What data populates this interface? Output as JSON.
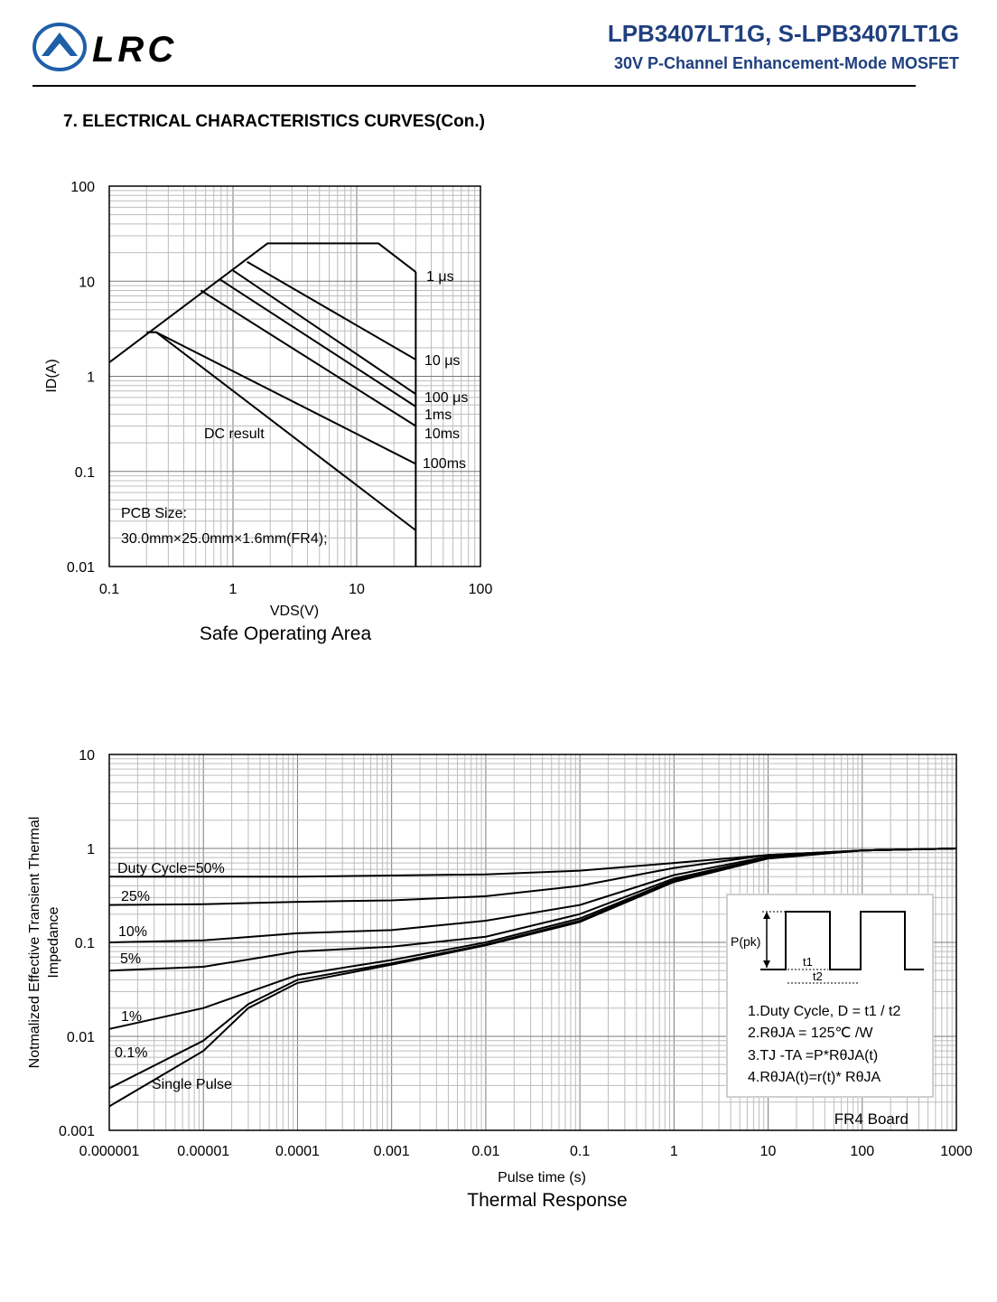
{
  "header": {
    "logo_text": "LRC",
    "part_number": "LPB3407LT1G, S-LPB3407LT1G",
    "description": "30V P-Channel Enhancement-Mode MOSFET"
  },
  "section_title": "7. ELECTRICAL CHARACTERISTICS CURVES(Con.)",
  "chart_data": [
    {
      "type": "line",
      "title": "Safe Operating Area",
      "xlabel": "VDS(V)",
      "ylabel": "ID(A)",
      "xscale": "log",
      "yscale": "log",
      "xlim": [
        0.1,
        100
      ],
      "ylim": [
        0.01,
        100
      ],
      "x_ticks": [
        "0.1",
        "1",
        "10",
        "100"
      ],
      "y_ticks": [
        "100",
        "10",
        "1",
        "0.1",
        "0.01"
      ],
      "grid": true,
      "series": [
        {
          "name": "1 μs",
          "x": [
            0.1,
            1.9,
            15,
            30
          ],
          "y": [
            1.4,
            25,
            25,
            12.5
          ]
        },
        {
          "name": "10 μs",
          "x": [
            1.3,
            30
          ],
          "y": [
            16,
            1.5
          ]
        },
        {
          "name": "100 μs",
          "x": [
            1.0,
            30
          ],
          "y": [
            13,
            0.65
          ]
        },
        {
          "name": "1ms",
          "x": [
            0.78,
            30
          ],
          "y": [
            10.5,
            0.48
          ]
        },
        {
          "name": "10ms",
          "x": [
            0.55,
            30
          ],
          "y": [
            8,
            0.3
          ]
        },
        {
          "name": "100ms",
          "x": [
            0.2,
            0.24,
            30
          ],
          "y": [
            2.9,
            2.9,
            0.12
          ]
        },
        {
          "name": "DC result",
          "x": [
            0.24,
            30
          ],
          "y": [
            2.9,
            0.024
          ]
        }
      ],
      "annotations": [
        "DC result",
        "PCB Size:",
        "30.0mm×25.0mm×1.6mm(FR4);"
      ],
      "limit_vds": 30
    },
    {
      "type": "line",
      "title": "Thermal Response",
      "xlabel": "Pulse time (s)",
      "ylabel": "Notmalized Effective Transient Thermal Impedance",
      "xscale": "log",
      "yscale": "log",
      "xlim": [
        1e-06,
        1000
      ],
      "ylim": [
        0.001,
        10
      ],
      "x_ticks": [
        "0.000001",
        "0.00001",
        "0.0001",
        "0.001",
        "0.01",
        "0.1",
        "1",
        "10",
        "100",
        "1000"
      ],
      "y_ticks": [
        "10",
        "1",
        "0.1",
        "0.01",
        "0.001"
      ],
      "grid": true,
      "series": [
        {
          "name": "Duty Cycle=50%",
          "x": [
            1e-06,
            0.0001,
            0.01,
            0.1,
            1,
            10,
            100,
            1000
          ],
          "y": [
            0.5,
            0.5,
            0.53,
            0.58,
            0.7,
            0.85,
            0.95,
            1.0
          ]
        },
        {
          "name": "25%",
          "x": [
            1e-06,
            1e-05,
            0.0001,
            0.001,
            0.01,
            0.1,
            1,
            10,
            100,
            1000
          ],
          "y": [
            0.25,
            0.255,
            0.27,
            0.28,
            0.31,
            0.4,
            0.62,
            0.85,
            0.95,
            1.0
          ]
        },
        {
          "name": "10%",
          "x": [
            1e-06,
            1e-05,
            0.0001,
            0.001,
            0.01,
            0.1,
            1,
            10,
            100,
            1000
          ],
          "y": [
            0.1,
            0.105,
            0.125,
            0.135,
            0.17,
            0.25,
            0.52,
            0.82,
            0.95,
            1.0
          ]
        },
        {
          "name": "5%",
          "x": [
            1e-06,
            1e-05,
            0.0001,
            0.001,
            0.01,
            0.1,
            1,
            10,
            100,
            1000
          ],
          "y": [
            0.05,
            0.055,
            0.08,
            0.09,
            0.115,
            0.2,
            0.48,
            0.8,
            0.95,
            1.0
          ]
        },
        {
          "name": "1%",
          "x": [
            1e-06,
            1e-05,
            0.0001,
            0.001,
            0.01,
            0.1,
            1,
            10,
            100,
            1000
          ],
          "y": [
            0.012,
            0.02,
            0.045,
            0.065,
            0.1,
            0.18,
            0.46,
            0.8,
            0.95,
            1.0
          ]
        },
        {
          "name": "0.1%",
          "x": [
            1e-06,
            1e-05,
            3e-05,
            0.0001,
            0.001,
            0.01,
            0.1,
            1,
            10,
            100,
            1000
          ],
          "y": [
            0.0028,
            0.009,
            0.022,
            0.04,
            0.06,
            0.095,
            0.17,
            0.45,
            0.79,
            0.95,
            1.0
          ]
        },
        {
          "name": "Single Pulse",
          "x": [
            1e-06,
            1e-05,
            3e-05,
            0.0001,
            0.001,
            0.01,
            0.1,
            1,
            10,
            100,
            1000
          ],
          "y": [
            0.0018,
            0.007,
            0.02,
            0.037,
            0.058,
            0.093,
            0.165,
            0.44,
            0.78,
            0.95,
            1.0
          ]
        }
      ],
      "legend_box": {
        "ppk_label": "P(pk)",
        "t1": "t1",
        "t2": "t2",
        "notes": [
          "1.Duty Cycle, D = t1 / t2",
          "2.RθJA = 125℃ /W",
          "3.TJ -TA =P*RθJA(t)",
          "4.RθJA(t)=r(t)* RθJA"
        ]
      },
      "board_label": "FR4 Board"
    }
  ]
}
